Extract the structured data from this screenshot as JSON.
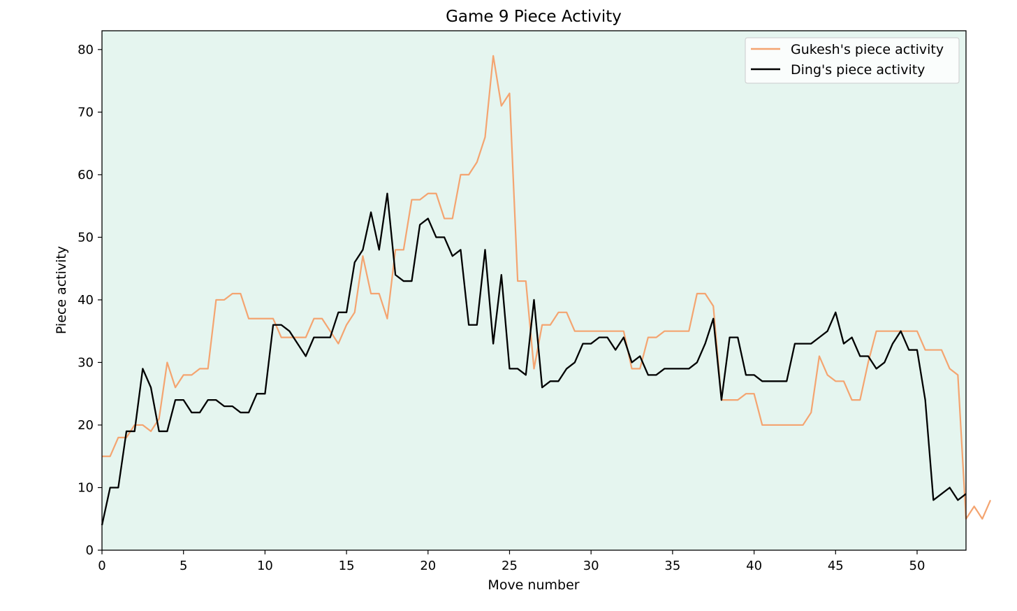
{
  "chart_data": {
    "type": "line",
    "title": "Game 9 Piece Activity",
    "xlabel": "Move number",
    "ylabel": "Piece activity",
    "xlim": [
      0,
      53
    ],
    "ylim": [
      0,
      83
    ],
    "xticks": [
      0,
      5,
      10,
      15,
      20,
      25,
      30,
      35,
      40,
      45,
      50
    ],
    "yticks": [
      0,
      10,
      20,
      30,
      40,
      50,
      60,
      70,
      80
    ],
    "background": "#e5f5ef",
    "grid": false,
    "legend_position": "top-right",
    "x_step": 0.5,
    "series": [
      {
        "name": "Gukesh's piece activity",
        "color": "#f4a470",
        "values": [
          15,
          15,
          18,
          18,
          20,
          20,
          19,
          21,
          30,
          26,
          28,
          28,
          29,
          29,
          40,
          40,
          41,
          41,
          37,
          37,
          37,
          37,
          34,
          34,
          34,
          34,
          37,
          37,
          35,
          33,
          36,
          38,
          47,
          41,
          41,
          37,
          48,
          48,
          56,
          56,
          57,
          57,
          53,
          53,
          60,
          60,
          62,
          66,
          79,
          71,
          73,
          43,
          43,
          29,
          36,
          36,
          38,
          38,
          35,
          35,
          35,
          35,
          35,
          35,
          35,
          29,
          29,
          34,
          34,
          35,
          35,
          35,
          35,
          41,
          41,
          39,
          24,
          24,
          24,
          25,
          25,
          20,
          20,
          20,
          20,
          20,
          20,
          22,
          31,
          28,
          27,
          27,
          24,
          24,
          30,
          35,
          35,
          35,
          35,
          35,
          35,
          32,
          32,
          32,
          29,
          28,
          5,
          7,
          5,
          8
        ]
      },
      {
        "name": "Ding's piece activity",
        "color": "#000000",
        "values": [
          4,
          10,
          10,
          19,
          19,
          29,
          26,
          19,
          19,
          24,
          24,
          22,
          22,
          24,
          24,
          23,
          23,
          22,
          22,
          25,
          25,
          36,
          36,
          35,
          33,
          31,
          34,
          34,
          34,
          38,
          38,
          46,
          48,
          54,
          48,
          57,
          44,
          43,
          43,
          52,
          53,
          50,
          50,
          47,
          48,
          36,
          36,
          48,
          33,
          44,
          29,
          29,
          28,
          40,
          26,
          27,
          27,
          29,
          30,
          33,
          33,
          34,
          34,
          32,
          34,
          30,
          31,
          28,
          28,
          29,
          29,
          29,
          29,
          30,
          33,
          37,
          24,
          34,
          34,
          28,
          28,
          27,
          27,
          27,
          27,
          33,
          33,
          33,
          34,
          35,
          38,
          33,
          34,
          31,
          31,
          29,
          30,
          33,
          35,
          32,
          32,
          24,
          8,
          9,
          10,
          8,
          9
        ]
      }
    ]
  }
}
